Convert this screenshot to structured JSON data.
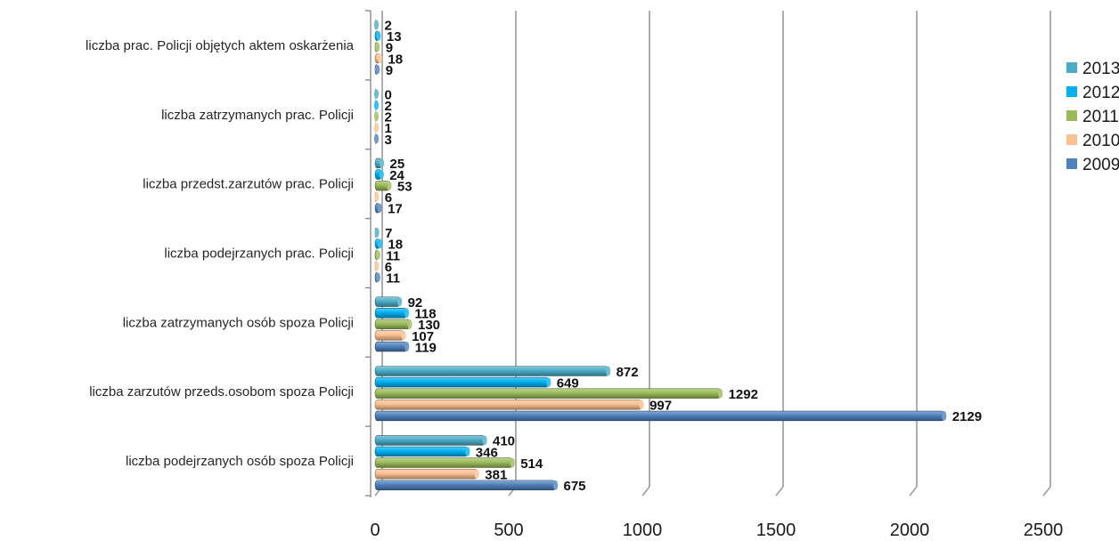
{
  "chart_data": {
    "type": "bar",
    "orientation": "horizontal",
    "title": "",
    "xlabel": "",
    "ylabel": "",
    "xlim": [
      0,
      2500
    ],
    "xticks": [
      0,
      500,
      1000,
      1500,
      2000,
      2500
    ],
    "grid": true,
    "legend_position": "right",
    "categories": [
      "liczba podejrzanych osób spoza Policji",
      "liczba zarzutów przeds.osobom spoza Policji",
      "liczba zatrzymanych osób spoza Policji",
      "liczba podejrzanych prac. Policji",
      "liczba przedst.zarzutów prac. Policji",
      "liczba zatrzymanych prac. Policji",
      "liczba prac. Policji objętych aktem oskarżenia"
    ],
    "series": [
      {
        "name": "2009",
        "color": "#4F81BD",
        "values": [
          675,
          2129,
          119,
          11,
          17,
          3,
          9
        ]
      },
      {
        "name": "2010",
        "color": "#FAC090",
        "values": [
          381,
          997,
          107,
          6,
          6,
          1,
          18
        ]
      },
      {
        "name": "2011",
        "color": "#9BBB59",
        "values": [
          514,
          1292,
          130,
          11,
          53,
          2,
          9
        ]
      },
      {
        "name": "2012",
        "color": "#00B0F0",
        "values": [
          346,
          649,
          118,
          18,
          24,
          2,
          13
        ]
      },
      {
        "name": "2013",
        "color": "#4BACC6",
        "values": [
          410,
          872,
          92,
          7,
          25,
          0,
          2
        ]
      }
    ]
  }
}
